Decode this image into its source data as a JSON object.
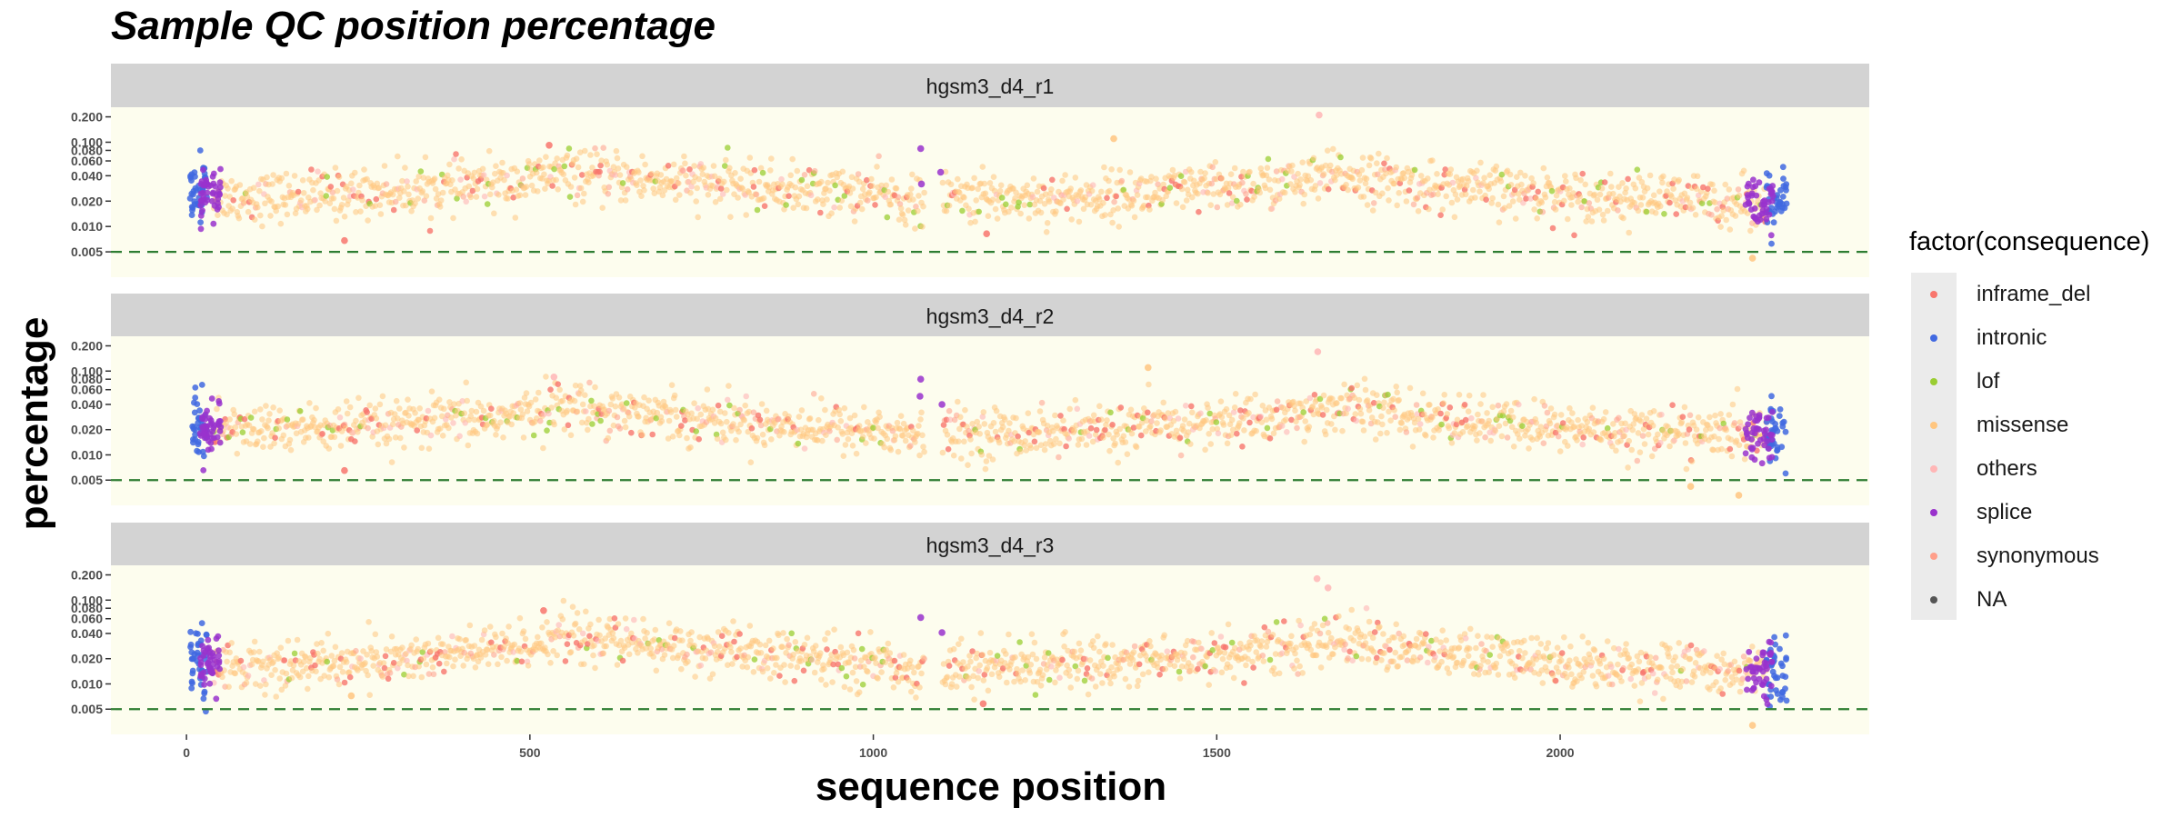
{
  "chart_data": {
    "type": "scatter",
    "title": "Sample QC position percentage",
    "xlabel": "sequence position",
    "ylabel": "percentage",
    "y_scale": "log",
    "xlim": [
      -110,
      2450
    ],
    "ylim": [
      0.0025,
      0.26
    ],
    "x_ticks": [
      0,
      500,
      1000,
      1500,
      2000
    ],
    "y_ticks": [
      0.005,
      0.01,
      0.02,
      0.04,
      0.06,
      0.08,
      0.1,
      0.2
    ],
    "y_tick_labels": [
      "0.005",
      "0.010",
      "0.020",
      "0.040",
      "0.060",
      "0.080",
      "0.100",
      "0.200"
    ],
    "threshold_line": 0.005,
    "threshold_color": "#2e7d32",
    "panel_background": "#fdfdee",
    "strip_background": "#d3d3d3",
    "legend": {
      "title": "factor(consequence)",
      "position": "right",
      "entries": [
        {
          "label": "inframe_del",
          "color": "#f8766d"
        },
        {
          "label": "intronic",
          "color": "#4169e1"
        },
        {
          "label": "lof",
          "color": "#9acd32"
        },
        {
          "label": "missense",
          "color": "#ffc680"
        },
        {
          "label": "others",
          "color": "#ffb6b6"
        },
        {
          "label": "splice",
          "color": "#9932cc"
        },
        {
          "label": "synonymous",
          "color": "#ff9f8a"
        },
        {
          "label": "NA",
          "color": "#555555"
        }
      ]
    },
    "panels": [
      {
        "name": "hgsm3_d4_r1",
        "trend": [
          [
            0,
            0.024
          ],
          [
            100,
            0.022
          ],
          [
            300,
            0.026
          ],
          [
            500,
            0.034
          ],
          [
            530,
            0.042
          ],
          [
            700,
            0.035
          ],
          [
            900,
            0.027
          ],
          [
            1000,
            0.025
          ],
          [
            1070,
            0.018
          ],
          [
            1110,
            0.022
          ],
          [
            1300,
            0.022
          ],
          [
            1500,
            0.028
          ],
          [
            1650,
            0.035
          ],
          [
            1680,
            0.042
          ],
          [
            1800,
            0.03
          ],
          [
            2000,
            0.024
          ],
          [
            2300,
            0.019
          ]
        ],
        "highlights": [
          [
            528,
            0.092,
            "inframe_del"
          ],
          [
            1069,
            0.084,
            "splice"
          ],
          [
            1649,
            0.21,
            "others"
          ],
          [
            1350,
            0.11,
            "missense"
          ],
          [
            230,
            0.0068,
            "inframe_del"
          ],
          [
            1165,
            0.0082,
            "inframe_del"
          ],
          [
            2280,
            0.0042,
            "missense"
          ],
          [
            1098,
            0.044,
            "splice"
          ],
          [
            1070,
            0.032,
            "splice"
          ]
        ]
      },
      {
        "name": "hgsm3_d4_r2",
        "trend": [
          [
            0,
            0.022
          ],
          [
            100,
            0.02
          ],
          [
            300,
            0.022
          ],
          [
            500,
            0.03
          ],
          [
            530,
            0.04
          ],
          [
            700,
            0.03
          ],
          [
            900,
            0.022
          ],
          [
            1000,
            0.02
          ],
          [
            1070,
            0.016
          ],
          [
            1110,
            0.018
          ],
          [
            1300,
            0.019
          ],
          [
            1500,
            0.024
          ],
          [
            1650,
            0.032
          ],
          [
            1680,
            0.04
          ],
          [
            1800,
            0.027
          ],
          [
            2000,
            0.021
          ],
          [
            2300,
            0.017
          ]
        ],
        "highlights": [
          [
            535,
            0.085,
            "others"
          ],
          [
            1069,
            0.08,
            "splice"
          ],
          [
            1647,
            0.17,
            "others"
          ],
          [
            1400,
            0.11,
            "missense"
          ],
          [
            230,
            0.0065,
            "inframe_del"
          ],
          [
            2260,
            0.0033,
            "missense"
          ],
          [
            2190,
            0.0042,
            "missense"
          ],
          [
            1100,
            0.04,
            "splice"
          ],
          [
            1068,
            0.05,
            "splice"
          ]
        ]
      },
      {
        "name": "hgsm3_d4_r3",
        "trend": [
          [
            0,
            0.018
          ],
          [
            100,
            0.016
          ],
          [
            300,
            0.019
          ],
          [
            500,
            0.028
          ],
          [
            530,
            0.038
          ],
          [
            700,
            0.028
          ],
          [
            900,
            0.02
          ],
          [
            1000,
            0.018
          ],
          [
            1070,
            0.014
          ],
          [
            1110,
            0.016
          ],
          [
            1300,
            0.017
          ],
          [
            1500,
            0.022
          ],
          [
            1650,
            0.03
          ],
          [
            1680,
            0.036
          ],
          [
            1800,
            0.024
          ],
          [
            2000,
            0.018
          ],
          [
            2300,
            0.014
          ]
        ],
        "highlights": [
          [
            520,
            0.075,
            "inframe_del"
          ],
          [
            1069,
            0.062,
            "splice"
          ],
          [
            1646,
            0.18,
            "others"
          ],
          [
            1662,
            0.14,
            "others"
          ],
          [
            1160,
            0.0058,
            "inframe_del"
          ],
          [
            2280,
            0.0032,
            "missense"
          ],
          [
            1100,
            0.041,
            "splice"
          ],
          [
            240,
            0.0072,
            "missense"
          ]
        ]
      }
    ]
  }
}
